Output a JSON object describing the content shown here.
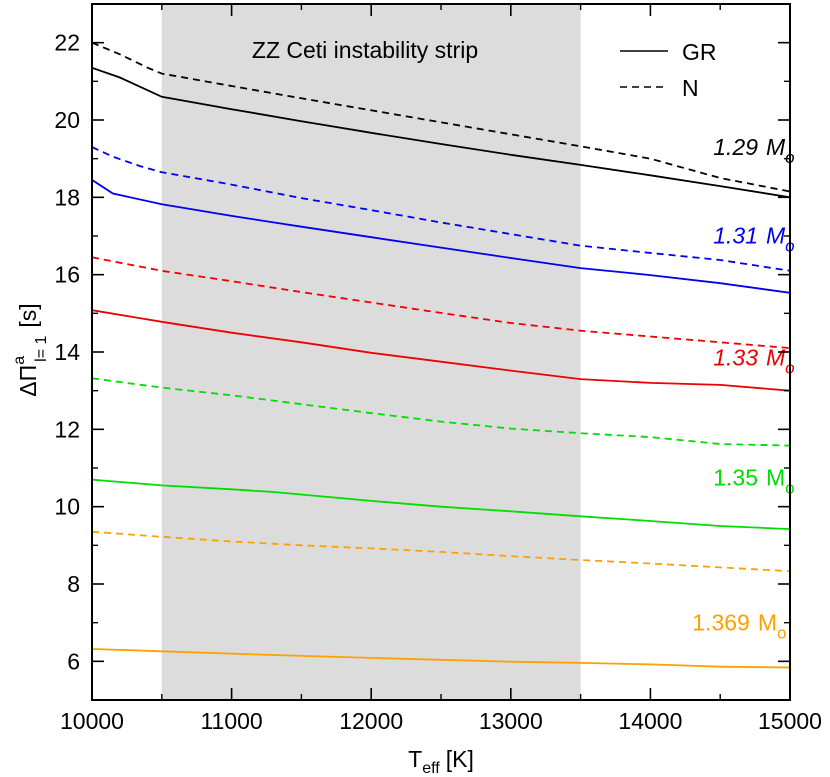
{
  "chart_data": {
    "type": "line",
    "title": "",
    "xlabel": {
      "main": "T",
      "sub": "eff",
      "unit": "[K]"
    },
    "ylabel": {
      "main": "ΔΠ",
      "sup": "a",
      "sub": "l= 1",
      "unit": "[s]"
    },
    "xlim": [
      10000,
      15000
    ],
    "ylim": [
      5,
      23
    ],
    "x_ticks": [
      10000,
      11000,
      12000,
      13000,
      14000,
      15000
    ],
    "y_ticks": [
      6,
      8,
      10,
      12,
      14,
      16,
      18,
      20,
      22
    ],
    "shaded_region": {
      "x": [
        10500,
        13500
      ],
      "label": "ZZ Ceti instability strip",
      "color": "#dcdcdc"
    },
    "legend": [
      {
        "label": "GR",
        "style": "solid"
      },
      {
        "label": "N",
        "style": "dashed"
      }
    ],
    "masses": [
      {
        "label": "1.29",
        "unit": "M",
        "sub": "o",
        "color": "#000000",
        "italic": true,
        "label_x": 14450,
        "label_y": 19.1,
        "gr": {
          "x": [
            10000,
            10200,
            10500,
            11000,
            11500,
            12000,
            12500,
            13000,
            13500,
            14000,
            14500,
            15000
          ],
          "y": [
            21.35,
            21.1,
            20.6,
            20.28,
            19.97,
            19.67,
            19.38,
            19.1,
            18.84,
            18.57,
            18.29,
            18.0
          ]
        },
        "n": {
          "x": [
            10000,
            10200,
            10400,
            10500,
            11000,
            11500,
            12000,
            12500,
            13000,
            13500,
            14000,
            14500,
            15000
          ],
          "y": [
            22.0,
            21.7,
            21.35,
            21.2,
            20.88,
            20.56,
            20.25,
            19.94,
            19.63,
            19.32,
            19.0,
            18.5,
            18.15
          ]
        }
      },
      {
        "label": "1.31",
        "unit": "M",
        "sub": "o",
        "color": "#0000ee",
        "italic": true,
        "label_x": 14450,
        "label_y": 16.8,
        "gr": {
          "x": [
            10000,
            10150,
            10500,
            11000,
            11500,
            12000,
            12500,
            13000,
            13500,
            14000,
            14500,
            15000
          ],
          "y": [
            18.45,
            18.1,
            17.82,
            17.52,
            17.24,
            16.97,
            16.7,
            16.43,
            16.17,
            15.99,
            15.78,
            15.53
          ]
        },
        "n": {
          "x": [
            10000,
            10150,
            10350,
            10500,
            11000,
            11500,
            12000,
            12500,
            13000,
            13500,
            13900,
            14500,
            15000
          ],
          "y": [
            19.3,
            19.05,
            18.8,
            18.65,
            18.33,
            17.98,
            17.67,
            17.35,
            17.05,
            16.75,
            16.6,
            16.38,
            16.1
          ]
        }
      },
      {
        "label": "1.33",
        "unit": "M",
        "sub": "o",
        "color": "#ee0000",
        "italic": true,
        "label_x": 14450,
        "label_y": 13.65,
        "gr": {
          "x": [
            10000,
            10500,
            11000,
            11500,
            12000,
            12500,
            13000,
            13500,
            14000,
            14500,
            15000
          ],
          "y": [
            15.08,
            14.78,
            14.5,
            14.25,
            13.98,
            13.75,
            13.52,
            13.3,
            13.2,
            13.15,
            13.0
          ]
        },
        "n": {
          "x": [
            10000,
            10500,
            11000,
            11500,
            12000,
            12500,
            13000,
            13500,
            14000,
            14500,
            15000
          ],
          "y": [
            16.45,
            16.1,
            15.83,
            15.55,
            15.28,
            15.01,
            14.75,
            14.55,
            14.4,
            14.25,
            14.1
          ]
        }
      },
      {
        "label": "1.35",
        "unit": "M",
        "sub": "o",
        "color": "#00dd00",
        "italic": false,
        "label_x": 14450,
        "label_y": 10.55,
        "gr": {
          "x": [
            10000,
            10500,
            11000,
            11300,
            12000,
            12500,
            13000,
            13500,
            14000,
            14500,
            15000
          ],
          "y": [
            10.7,
            10.55,
            10.45,
            10.38,
            10.15,
            10.0,
            9.88,
            9.75,
            9.63,
            9.5,
            9.42
          ]
        },
        "n": {
          "x": [
            10000,
            10500,
            11000,
            11500,
            12000,
            12500,
            13000,
            13500,
            14000,
            14500,
            15000
          ],
          "y": [
            13.32,
            13.08,
            12.88,
            12.65,
            12.42,
            12.2,
            12.02,
            11.9,
            11.8,
            11.62,
            11.58
          ]
        }
      },
      {
        "label": "1.369",
        "unit": "M",
        "sub": "o",
        "color": "#ffa000",
        "italic": false,
        "label_x": 14300,
        "label_y": 6.8,
        "gr": {
          "x": [
            10000,
            10500,
            11000,
            11500,
            12000,
            12500,
            13000,
            13500,
            14000,
            14500,
            15000
          ],
          "y": [
            6.32,
            6.26,
            6.2,
            6.14,
            6.09,
            6.04,
            5.99,
            5.96,
            5.92,
            5.86,
            5.84
          ]
        },
        "n": {
          "x": [
            10000,
            10500,
            11000,
            11500,
            12000,
            12500,
            13000,
            13500,
            14000,
            14500,
            15000
          ],
          "y": [
            9.35,
            9.22,
            9.1,
            9.0,
            8.92,
            8.83,
            8.72,
            8.62,
            8.53,
            8.43,
            8.33
          ]
        }
      }
    ]
  }
}
